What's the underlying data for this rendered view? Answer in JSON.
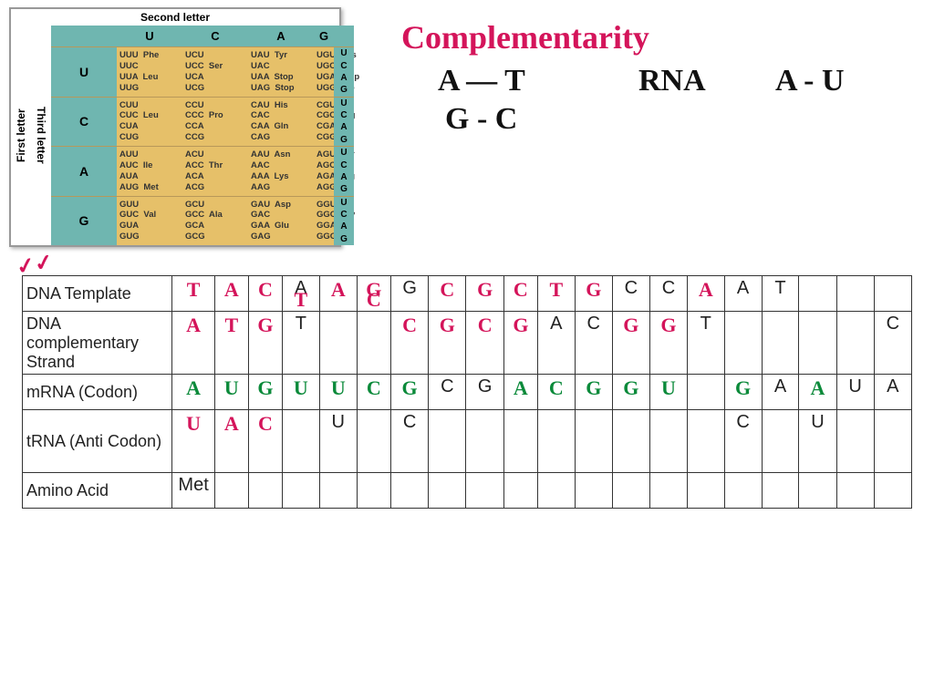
{
  "codon_table": {
    "title_top": "Second letter",
    "left_label": "First letter",
    "right_label": "Third letter",
    "col_headers": [
      "U",
      "C",
      "A",
      "G"
    ],
    "row_headers": [
      "U",
      "C",
      "A",
      "G"
    ],
    "third_letters": [
      "U",
      "C",
      "A",
      "G"
    ],
    "cells": {
      "UU": "UUU  Phe\nUUC\nUUA  Leu\nUUG",
      "UC": "UCU\nUCC  Ser\nUCA\nUCG",
      "UA": "UAU  Tyr\nUAC\nUAA  Stop\nUAG  Stop",
      "UG": "UGU  Cys\nUGC\nUGA  Stop\nUGG  Trp",
      "CU": "CUU\nCUC  Leu\nCUA\nCUG",
      "CC": "CCU\nCCC  Pro\nCCA\nCCG",
      "CA": "CAU  His\nCAC\nCAA  Gln\nCAG",
      "CG": "CGU\nCGC  Arg\nCGA\nCGG",
      "AU": "AUU\nAUC  Ile\nAUA\nAUG  Met",
      "AC": "ACU\nACC  Thr\nACA\nACG",
      "AA": "AAU  Asn\nAAC\nAAA  Lys\nAAG",
      "AG": "AGU  Ser\nAGC\nAGA  Arg\nAGG",
      "GU": "GUU\nGUC  Val\nGUA\nGUG",
      "GC": "GCU\nGCC  Ala\nGCA\nGCG",
      "GA": "GAU  Asp\nGAC\nGAA  Glu\nGAG",
      "GG": "GGU\nGGC  Gly\nGGA\nGGG"
    }
  },
  "handwriting": {
    "title": "Complementarity",
    "pair1": "A — T",
    "pair2": "G - C",
    "rna": "RNA",
    "pair3": "A - U"
  },
  "worksheet": {
    "rows": {
      "r1_label": "DNA Template",
      "r2_label": "DNA complementary Strand",
      "r3_label": "mRNA (Codon)",
      "r4_label": "tRNA (Anti Codon)",
      "r5_label": "Amino Acid"
    },
    "r1": [
      {
        "hw": "T",
        "c": "#d4145a"
      },
      {
        "hw": "A",
        "c": "#d4145a"
      },
      {
        "hw": "C",
        "c": "#d4145a"
      },
      {
        "t": "A"
      },
      {
        "hw": "A",
        "c": "#d4145a"
      },
      {
        "hw": "G",
        "c": "#d4145a"
      },
      {
        "t": "G"
      },
      {
        "hw": "C",
        "c": "#d4145a"
      },
      {
        "hw": "G",
        "c": "#d4145a"
      },
      {
        "hw": "C",
        "c": "#d4145a"
      },
      {
        "hw": "T",
        "c": "#d4145a"
      },
      {
        "hw": "G",
        "c": "#d4145a"
      },
      {
        "t": "C"
      },
      {
        "t": "C"
      },
      {
        "hw": "A",
        "c": "#d4145a"
      },
      {
        "t": "A"
      },
      {
        "t": "T"
      },
      {},
      {},
      {}
    ],
    "r2": [
      {
        "hw": "A",
        "c": "#d4145a"
      },
      {
        "hw": "T",
        "c": "#d4145a"
      },
      {
        "hw": "G",
        "c": "#d4145a"
      },
      {
        "hw": "T",
        "c": "#d4145a",
        "low": true,
        "t": "T"
      },
      {
        "hw": "",
        "c": "#d4145a"
      },
      {
        "hw": "C",
        "c": "#d4145a",
        "low": true
      },
      {
        "hw": "C",
        "c": "#d4145a"
      },
      {
        "hw": "G",
        "c": "#d4145a"
      },
      {
        "hw": "C",
        "c": "#d4145a"
      },
      {
        "hw": "G",
        "c": "#d4145a"
      },
      {
        "t": "A"
      },
      {
        "t": "C"
      },
      {
        "hw": "G",
        "c": "#d4145a"
      },
      {
        "hw": "G",
        "c": "#d4145a"
      },
      {
        "t": "T"
      },
      {},
      {},
      {},
      {},
      {
        "t": "C"
      }
    ],
    "r3": [
      {
        "hw": "A",
        "c": "#0b8a3a"
      },
      {
        "hw": "U",
        "c": "#0b8a3a"
      },
      {
        "hw": "G",
        "c": "#0b8a3a"
      },
      {
        "hw": "U",
        "c": "#0b8a3a"
      },
      {
        "hw": "U",
        "c": "#0b8a3a"
      },
      {
        "hw": "C",
        "c": "#0b8a3a"
      },
      {
        "hw": "G",
        "c": "#0b8a3a"
      },
      {
        "t": "C"
      },
      {
        "t": "G"
      },
      {
        "hw": "A",
        "c": "#0b8a3a"
      },
      {
        "hw": "C",
        "c": "#0b8a3a"
      },
      {
        "hw": "G",
        "c": "#0b8a3a"
      },
      {
        "hw": "G",
        "c": "#0b8a3a"
      },
      {
        "hw": "U",
        "c": "#0b8a3a"
      },
      {},
      {
        "hw": "G",
        "c": "#0b8a3a"
      },
      {
        "t": "A"
      },
      {
        "hw": "A",
        "c": "#0b8a3a"
      },
      {
        "t": "U"
      },
      {
        "t": "A"
      }
    ],
    "r4": [
      {
        "hw": "U",
        "c": "#d4145a"
      },
      {
        "hw": "A",
        "c": "#d4145a"
      },
      {
        "hw": "C",
        "c": "#d4145a"
      },
      {},
      {
        "t": "U"
      },
      {},
      {
        "t": "C"
      },
      {},
      {},
      {},
      {},
      {},
      {},
      {},
      {},
      {
        "t": "C"
      },
      {},
      {
        "t": "U"
      },
      {},
      {}
    ],
    "r5": [
      {
        "t": "Met",
        "span": 1
      },
      {},
      {},
      {},
      {},
      {},
      {},
      {},
      {},
      {},
      {},
      {},
      {},
      {},
      {},
      {},
      {},
      {},
      {},
      {}
    ]
  },
  "styling": {
    "red": "#d4145a",
    "green": "#0b8a3a",
    "teal": "#6fb6b0",
    "yellow": "#e6c069"
  }
}
